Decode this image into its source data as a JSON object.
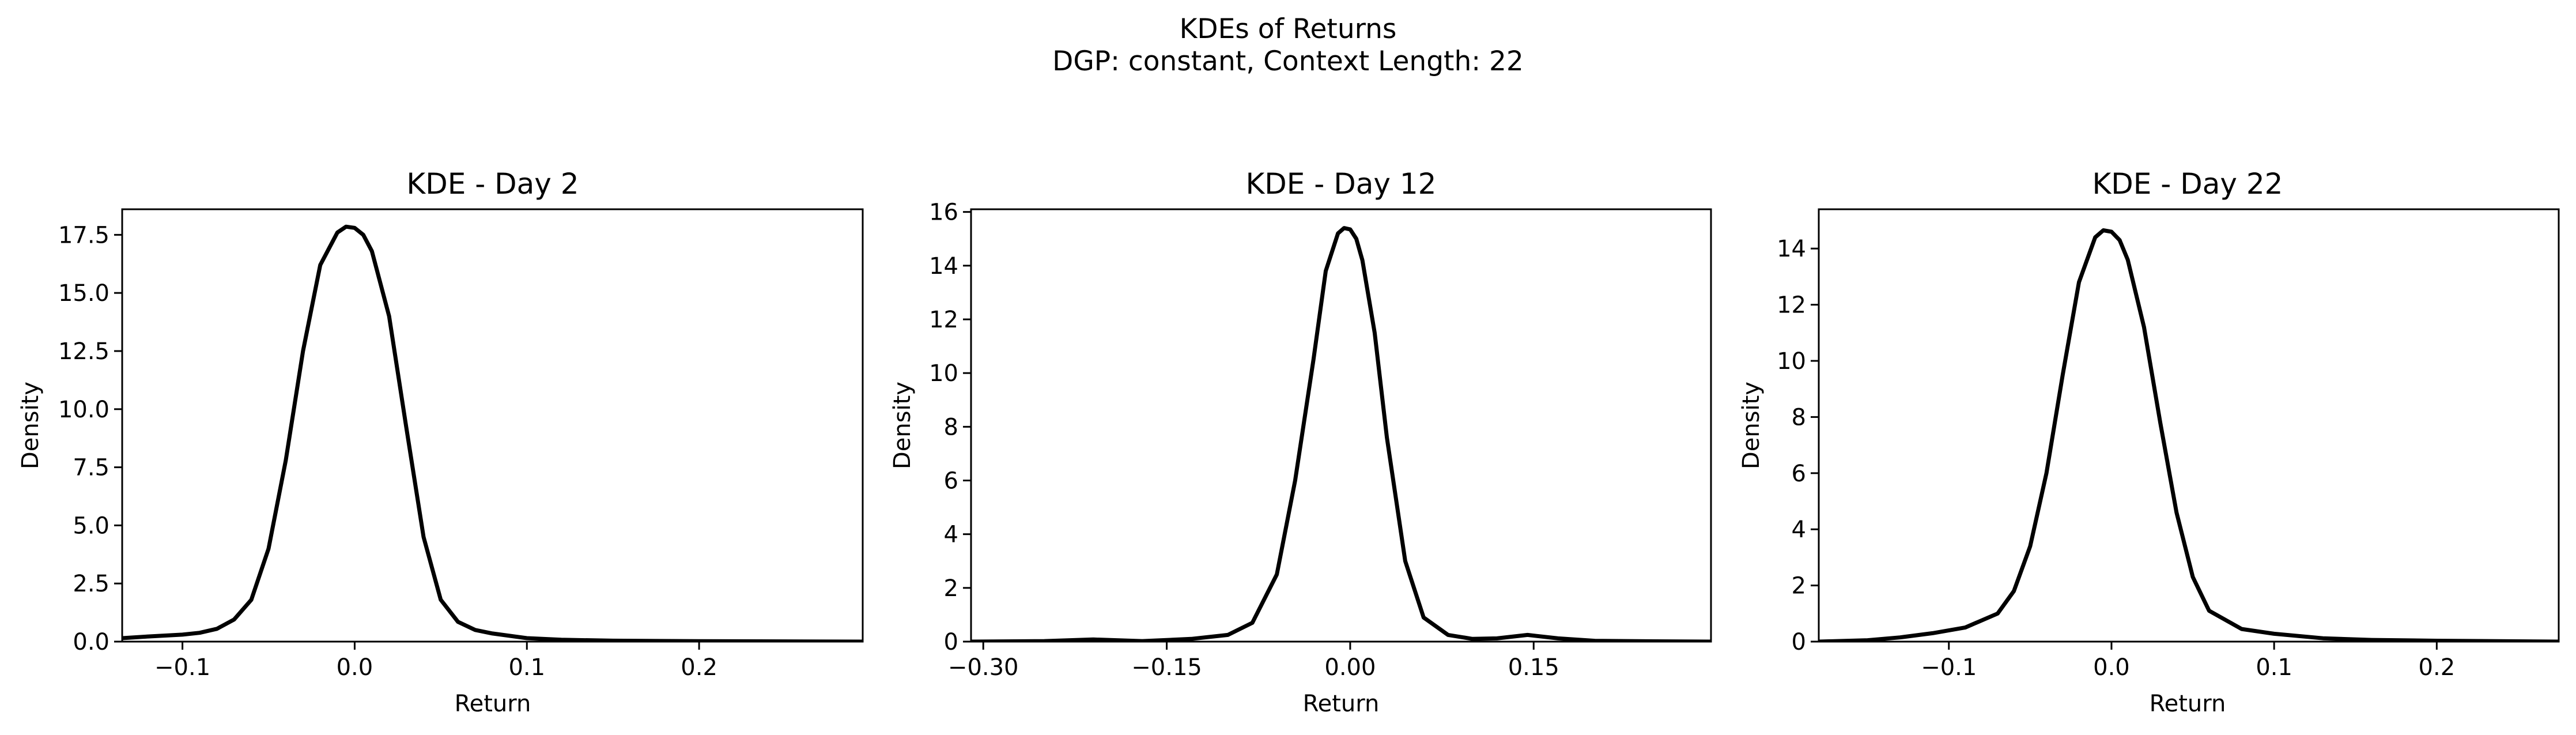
{
  "figure": {
    "title_line1": "KDEs of Returns",
    "title_line2": "DGP: constant, Context Length: 22",
    "line_color": "#000000"
  },
  "chart_data": [
    {
      "type": "line",
      "title": "KDE - Day 2",
      "xlabel": "Return",
      "ylabel": "Density",
      "xlim": [
        -0.135,
        0.295
      ],
      "ylim": [
        0,
        18.6
      ],
      "xticks": [
        -0.1,
        0.0,
        0.1,
        0.2
      ],
      "xtick_labels": [
        "−0.1",
        "0.0",
        "0.1",
        "0.2"
      ],
      "yticks": [
        0,
        2.5,
        5,
        7.5,
        10,
        12.5,
        15,
        17.5
      ],
      "ytick_labels": [
        "0.0",
        "2.5",
        "5.0",
        "7.5",
        "10.0",
        "12.5",
        "15.0",
        "17.5"
      ],
      "grid": false,
      "series": [
        {
          "x": [
            -0.135,
            -0.12,
            -0.1,
            -0.09,
            -0.08,
            -0.07,
            -0.06,
            -0.05,
            -0.04,
            -0.03,
            -0.02,
            -0.01,
            -0.005,
            0.0,
            0.005,
            0.01,
            0.02,
            0.03,
            0.04,
            0.05,
            0.06,
            0.07,
            0.08,
            0.1,
            0.12,
            0.15,
            0.2,
            0.25,
            0.295
          ],
          "y": [
            0.15,
            0.22,
            0.3,
            0.38,
            0.55,
            0.95,
            1.8,
            4.0,
            7.8,
            12.5,
            16.2,
            17.6,
            17.85,
            17.8,
            17.5,
            16.8,
            14.0,
            9.2,
            4.5,
            1.8,
            0.85,
            0.5,
            0.35,
            0.15,
            0.08,
            0.04,
            0.02,
            0.01,
            0.0
          ]
        }
      ]
    },
    {
      "type": "line",
      "title": "KDE - Day 12",
      "xlabel": "Return",
      "ylabel": "Density",
      "xlim": [
        -0.31,
        0.295
      ],
      "ylim": [
        0,
        16.1
      ],
      "xticks": [
        -0.3,
        -0.15,
        0.0,
        0.15
      ],
      "xtick_labels": [
        "−0.30",
        "−0.15",
        "0.00",
        "0.15"
      ],
      "yticks": [
        0,
        2,
        4,
        6,
        8,
        10,
        12,
        14,
        16
      ],
      "ytick_labels": [
        "0",
        "2",
        "4",
        "6",
        "8",
        "10",
        "12",
        "14",
        "16"
      ],
      "grid": false,
      "series": [
        {
          "x": [
            -0.31,
            -0.25,
            -0.21,
            -0.17,
            -0.13,
            -0.1,
            -0.08,
            -0.06,
            -0.045,
            -0.03,
            -0.02,
            -0.01,
            -0.005,
            0.0,
            0.005,
            0.01,
            0.02,
            0.03,
            0.045,
            0.06,
            0.08,
            0.1,
            0.12,
            0.145,
            0.17,
            0.2,
            0.25,
            0.295
          ],
          "y": [
            0.0,
            0.02,
            0.08,
            0.02,
            0.1,
            0.25,
            0.7,
            2.5,
            6.0,
            10.5,
            13.8,
            15.2,
            15.4,
            15.35,
            15.0,
            14.2,
            11.5,
            7.6,
            3.0,
            0.9,
            0.25,
            0.1,
            0.12,
            0.25,
            0.12,
            0.03,
            0.01,
            0.0
          ]
        }
      ]
    },
    {
      "type": "line",
      "title": "KDE - Day 22",
      "xlabel": "Return",
      "ylabel": "Density",
      "xlim": [
        -0.18,
        0.275
      ],
      "ylim": [
        0,
        15.4
      ],
      "xticks": [
        -0.1,
        0.0,
        0.1,
        0.2
      ],
      "xtick_labels": [
        "−0.1",
        "0.0",
        "0.1",
        "0.2"
      ],
      "yticks": [
        0,
        2,
        4,
        6,
        8,
        10,
        12,
        14
      ],
      "ytick_labels": [
        "0",
        "2",
        "4",
        "6",
        "8",
        "10",
        "12",
        "14"
      ],
      "grid": false,
      "series": [
        {
          "x": [
            -0.18,
            -0.15,
            -0.13,
            -0.11,
            -0.09,
            -0.07,
            -0.06,
            -0.05,
            -0.04,
            -0.03,
            -0.02,
            -0.01,
            -0.005,
            0.0,
            0.005,
            0.01,
            0.02,
            0.03,
            0.04,
            0.05,
            0.06,
            0.08,
            0.1,
            0.13,
            0.16,
            0.2,
            0.275
          ],
          "y": [
            0.0,
            0.05,
            0.15,
            0.3,
            0.5,
            1.0,
            1.8,
            3.4,
            6.0,
            9.5,
            12.8,
            14.4,
            14.65,
            14.6,
            14.3,
            13.6,
            11.2,
            7.8,
            4.6,
            2.3,
            1.1,
            0.45,
            0.28,
            0.12,
            0.06,
            0.03,
            0.0
          ]
        }
      ]
    }
  ]
}
